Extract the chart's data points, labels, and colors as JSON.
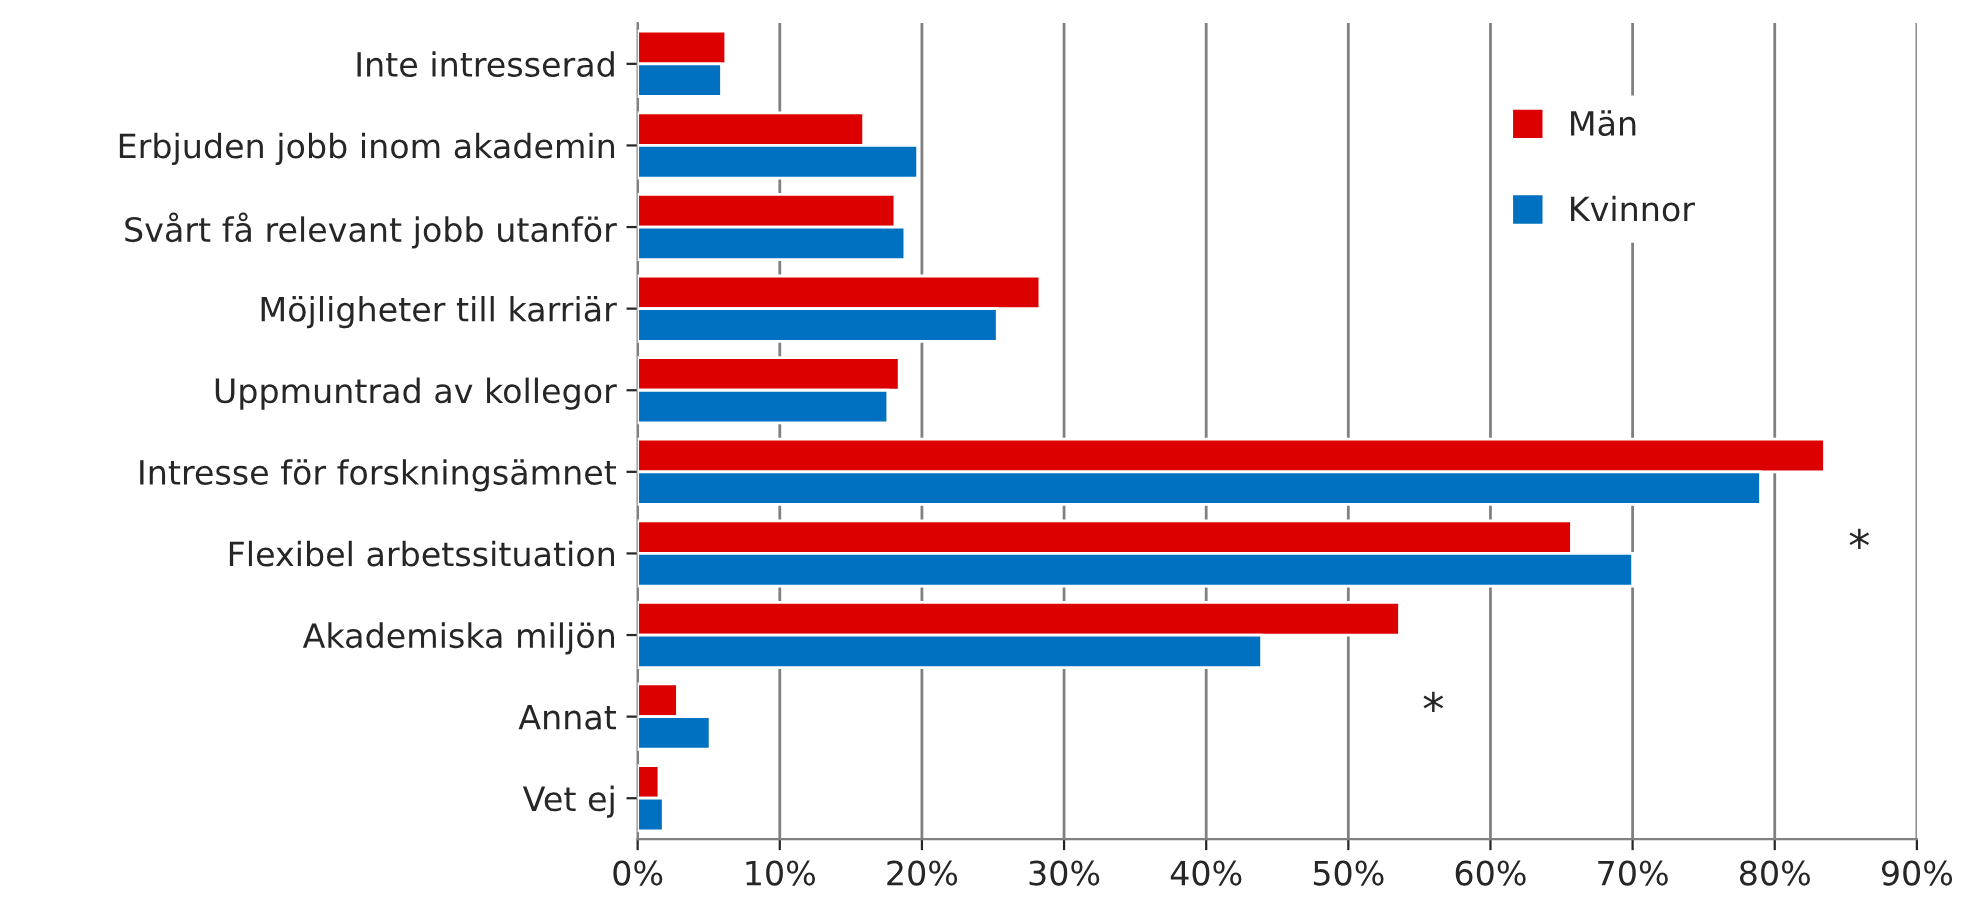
{
  "chart_data": {
    "type": "bar",
    "orientation": "horizontal",
    "categories": [
      "Inte intresserad",
      "Erbjuden jobb inom akademin",
      "Svårt få relevant jobb utanför",
      "Möjligheter till karriär",
      "Uppmuntrad av kollegor",
      "Intresse för forskningsämnet",
      "Flexibel arbetssituation",
      "Akademiska miljön",
      "Annat",
      "Vet ej"
    ],
    "series": [
      {
        "name": "Män",
        "color": "#dd0000",
        "values": [
          6.2,
          15.9,
          18.1,
          28.3,
          18.4,
          83.5,
          65.7,
          53.6,
          2.8,
          1.5
        ]
      },
      {
        "name": "Kvinnor",
        "color": "#0070c0",
        "values": [
          5.9,
          19.7,
          18.8,
          25.3,
          17.6,
          79.0,
          70.0,
          43.9,
          5.1,
          1.8
        ]
      }
    ],
    "xlim": [
      0,
      90
    ],
    "xticks": [
      {
        "value": 0,
        "label": "0%"
      },
      {
        "value": 10,
        "label": "10%"
      },
      {
        "value": 20,
        "label": "20%"
      },
      {
        "value": 30,
        "label": "30%"
      },
      {
        "value": 40,
        "label": "40%"
      },
      {
        "value": 50,
        "label": "50%"
      },
      {
        "value": 60,
        "label": "60%"
      },
      {
        "value": 70,
        "label": "70%"
      },
      {
        "value": 80,
        "label": "80%"
      },
      {
        "value": 90,
        "label": "90%"
      }
    ],
    "annotations": [
      "*",
      "*"
    ],
    "grid": "x",
    "legend": "top right"
  }
}
